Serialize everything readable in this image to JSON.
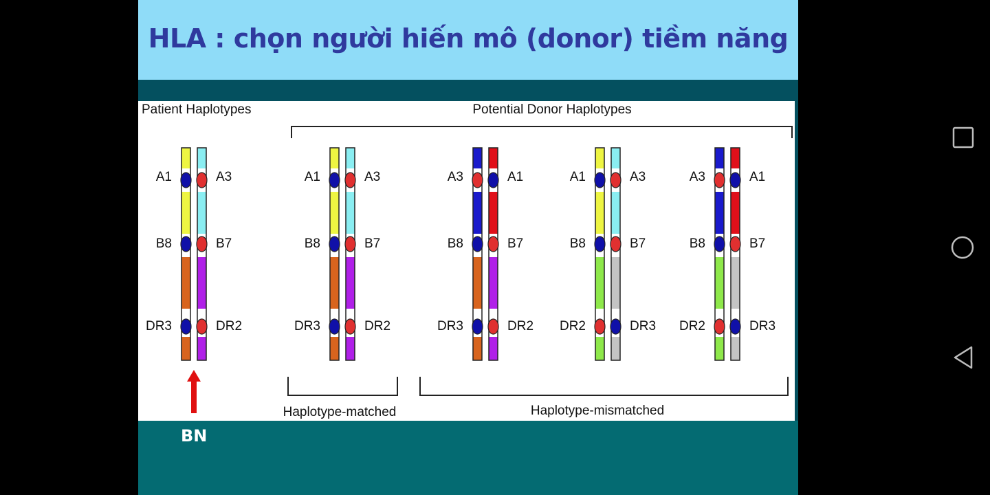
{
  "slide": {
    "title": "HLA : chọn người hiến mô (donor) tiềm năng",
    "bn_label": "BN"
  },
  "figure": {
    "patient_heading": "Patient Haplotypes",
    "donor_heading": "Potential Donor Haplotypes",
    "group_matched": "Haplotype-matched",
    "group_mismatched": "Haplotype-mismatched",
    "pairs": [
      {
        "left": [
          "A1",
          "B8",
          "DR3"
        ],
        "right": [
          "A3",
          "B7",
          "DR2"
        ]
      },
      {
        "left": [
          "A1",
          "B8",
          "DR3"
        ],
        "right": [
          "A3",
          "B7",
          "DR2"
        ]
      },
      {
        "left": [
          "A3",
          "B8",
          "DR3"
        ],
        "right": [
          "A1",
          "B7",
          "DR2"
        ]
      },
      {
        "left": [
          "A1",
          "B8",
          "DR2"
        ],
        "right": [
          "A3",
          "B7",
          "DR3"
        ]
      },
      {
        "left": [
          "A3",
          "B8",
          "DR2"
        ],
        "right": [
          "A1",
          "B7",
          "DR3"
        ]
      }
    ]
  },
  "colors": {
    "yellow": "#eef542",
    "cyan": "#8aeef2",
    "navy": "#1a1acc",
    "red": "#e0101a",
    "orange": "#d8641e",
    "purple": "#b020e8",
    "green": "#8ee84a",
    "gray": "#c4c4c4",
    "locus_blue": "#1010a8",
    "locus_red": "#e03030",
    "title": "#2f3a9e",
    "arrow": "#e01010"
  },
  "nav": {
    "square_icon": "recent-apps-icon",
    "circle_icon": "home-icon",
    "triangle_icon": "back-icon"
  }
}
